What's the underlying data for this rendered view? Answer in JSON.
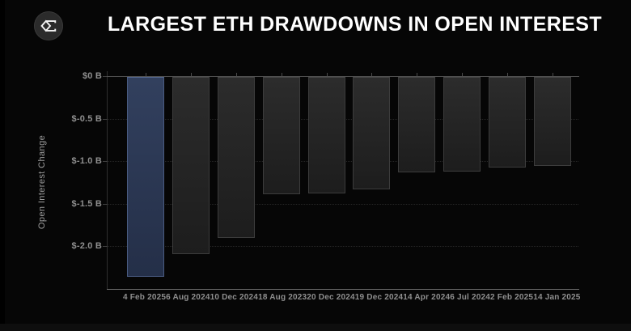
{
  "header": {
    "title": "LARGEST ETH DRAWDOWNS IN OPEN INTEREST",
    "logo_icon": "sigma-diamond-logo"
  },
  "chart_data": {
    "type": "bar",
    "title": "LARGEST ETH DRAWDOWNS IN OPEN INTEREST",
    "xlabel": "",
    "ylabel": "Open Interest Change",
    "unit": "billions USD",
    "ylim": [
      -2.5,
      0
    ],
    "grid": "horizontal dotted",
    "legend_position": "none",
    "categories": [
      "4 Feb 2025",
      "6 Aug 2024",
      "10 Dec 2024",
      "18 Aug 2023",
      "20 Dec 2024",
      "19 Dec 2024",
      "14 Apr 2024",
      "6 Jul 2024",
      "2 Feb 2025",
      "14 Jan 2025"
    ],
    "values": [
      -2.36,
      -2.09,
      -1.9,
      -1.38,
      -1.37,
      -1.33,
      -1.13,
      -1.12,
      -1.07,
      -1.05
    ],
    "yticks": [
      {
        "value": 0,
        "label": "$0 B"
      },
      {
        "value": -0.5,
        "label": "$-0.5 B"
      },
      {
        "value": -1.0,
        "label": "$-1.0 B"
      },
      {
        "value": -1.5,
        "label": "$-1.5 B"
      },
      {
        "value": -2.0,
        "label": "$-2.0 B"
      }
    ],
    "highlight_index": 0,
    "colors": {
      "background": "#000000",
      "highlight_bar": "#32405e",
      "highlight_bar_border": "#4a5c82",
      "bar": "#2c2c2c",
      "bar_border": "#3c3c3c",
      "zero_line": "#4f4f4f",
      "bottom_axis_line": "#6e6e6e",
      "tick_label": "#8f8f8f",
      "title": "#ffffff"
    }
  }
}
